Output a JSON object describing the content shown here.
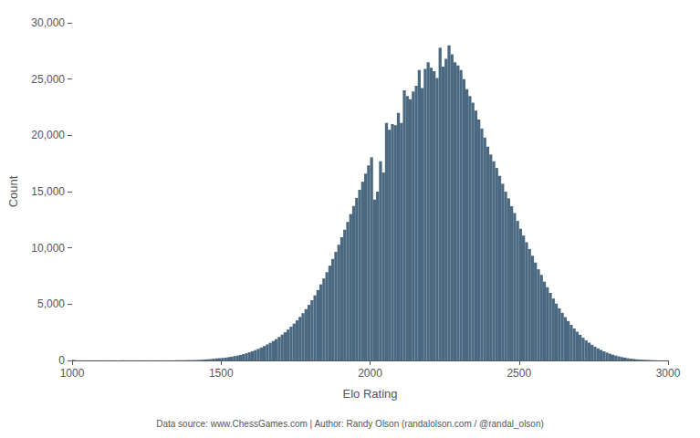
{
  "chart_data": {
    "type": "histogram",
    "xlabel": "Elo Rating",
    "ylabel": "Count",
    "footnote": "Data source: www.ChessGames.com | Author: Randy Olson (randalolson.com / @randal_olson)",
    "color": "#4a6880",
    "xlim": [
      1000,
      3000
    ],
    "xticks": [
      1000,
      1500,
      2000,
      2500,
      3000
    ],
    "ylim": [
      0,
      30000
    ],
    "yticks": [
      0,
      {
        "value": 5000,
        "label": "5,000"
      },
      {
        "value": 10000,
        "label": "10,000"
      },
      {
        "value": 15000,
        "label": "15,000"
      },
      {
        "value": 20000,
        "label": "20,000"
      },
      {
        "value": 25000,
        "label": "25,000"
      },
      {
        "value": 30000,
        "label": "30,000"
      }
    ],
    "grid": false,
    "bins": [
      1000,
      1010,
      1020,
      1030,
      1040,
      1050,
      1060,
      1070,
      1080,
      1090,
      1100,
      1110,
      1120,
      1130,
      1140,
      1150,
      1160,
      1170,
      1180,
      1190,
      1200,
      1210,
      1220,
      1230,
      1240,
      1250,
      1260,
      1270,
      1280,
      1290,
      1300,
      1310,
      1320,
      1330,
      1340,
      1350,
      1360,
      1370,
      1380,
      1390,
      1400,
      1410,
      1420,
      1430,
      1440,
      1450,
      1460,
      1470,
      1480,
      1490,
      1500,
      1510,
      1520,
      1530,
      1540,
      1550,
      1560,
      1570,
      1580,
      1590,
      1600,
      1610,
      1620,
      1630,
      1640,
      1650,
      1660,
      1670,
      1680,
      1690,
      1700,
      1710,
      1720,
      1730,
      1740,
      1750,
      1760,
      1770,
      1780,
      1790,
      1800,
      1810,
      1820,
      1830,
      1840,
      1850,
      1860,
      1870,
      1880,
      1890,
      1900,
      1910,
      1920,
      1930,
      1940,
      1950,
      1960,
      1970,
      1980,
      1990,
      2000,
      2010,
      2020,
      2030,
      2040,
      2050,
      2060,
      2070,
      2080,
      2090,
      2100,
      2110,
      2120,
      2130,
      2140,
      2150,
      2160,
      2170,
      2180,
      2190,
      2200,
      2210,
      2220,
      2230,
      2240,
      2250,
      2260,
      2270,
      2280,
      2290,
      2300,
      2310,
      2320,
      2330,
      2340,
      2350,
      2360,
      2370,
      2380,
      2390,
      2400,
      2410,
      2420,
      2430,
      2440,
      2450,
      2460,
      2470,
      2480,
      2490,
      2500,
      2510,
      2520,
      2530,
      2540,
      2550,
      2560,
      2570,
      2580,
      2590,
      2600,
      2610,
      2620,
      2630,
      2640,
      2650,
      2660,
      2670,
      2680,
      2690,
      2700,
      2710,
      2720,
      2730,
      2740,
      2750,
      2760,
      2770,
      2780,
      2790,
      2800,
      2810,
      2820,
      2830,
      2840,
      2850,
      2860,
      2870,
      2880,
      2890,
      2900,
      2910,
      2920,
      2930,
      2940,
      2950,
      2960,
      2970,
      2980,
      2990,
      3000
    ],
    "values": [
      50,
      10,
      10,
      10,
      10,
      10,
      10,
      10,
      10,
      10,
      10,
      10,
      10,
      10,
      10,
      10,
      10,
      10,
      10,
      10,
      10,
      10,
      10,
      10,
      10,
      10,
      10,
      10,
      10,
      10,
      10,
      10,
      10,
      10,
      10,
      20,
      20,
      20,
      30,
      30,
      30,
      40,
      50,
      60,
      80,
      100,
      120,
      150,
      180,
      200,
      220,
      250,
      290,
      330,
      380,
      430,
      490,
      560,
      640,
      730,
      820,
      920,
      1030,
      1150,
      1280,
      1420,
      1570,
      1730,
      1900,
      2090,
      2290,
      2510,
      2740,
      3000,
      3270,
      3560,
      3870,
      4200,
      4560,
      4940,
      5350,
      5790,
      6260,
      6760,
      7290,
      7840,
      8420,
      9020,
      9640,
      10280,
      10940,
      11620,
      12310,
      13010,
      13720,
      14440,
      15160,
      15880,
      16610,
      17330,
      18050,
      14300,
      15000,
      17700,
      16700,
      21100,
      20500,
      21000,
      20900,
      22000,
      21100,
      24000,
      23500,
      23200,
      23900,
      24400,
      25800,
      24200,
      25900,
      26500,
      26000,
      25700,
      25100,
      27800,
      26100,
      26800,
      28000,
      27200,
      26500,
      26200,
      25800,
      25000,
      24100,
      23500,
      22900,
      22200,
      21400,
      20600,
      19800,
      19000,
      18300,
      17700,
      17100,
      16400,
      15700,
      15000,
      14400,
      13700,
      13100,
      12400,
      11700,
      11100,
      10500,
      9900,
      9300,
      8700,
      8100,
      7600,
      7000,
      6500,
      6000,
      5500,
      5050,
      4630,
      4230,
      3850,
      3500,
      3160,
      2840,
      2550,
      2280,
      2020,
      1790,
      1580,
      1390,
      1220,
      1070,
      930,
      810,
      700,
      600,
      510,
      430,
      360,
      300,
      250,
      200,
      160,
      130,
      100,
      80,
      60,
      50,
      40,
      30,
      20,
      10,
      5,
      5,
      5
    ]
  }
}
